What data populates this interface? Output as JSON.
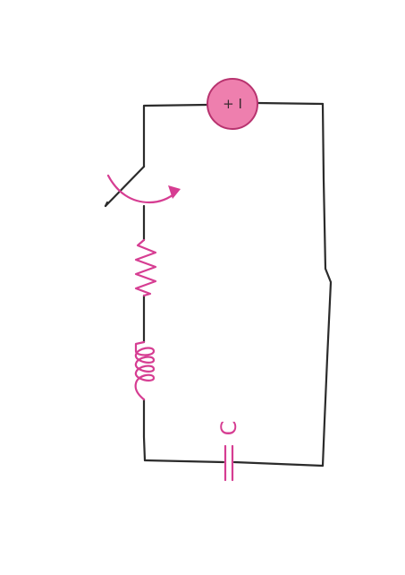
{
  "battery": {
    "label": "+ I"
  },
  "capacitor": {
    "label": "C"
  },
  "colors": {
    "wire": "#2b2b2b",
    "component_pink": "#d63d92",
    "battery_fill": "#ee7fae",
    "battery_stroke": "#b8336f"
  }
}
